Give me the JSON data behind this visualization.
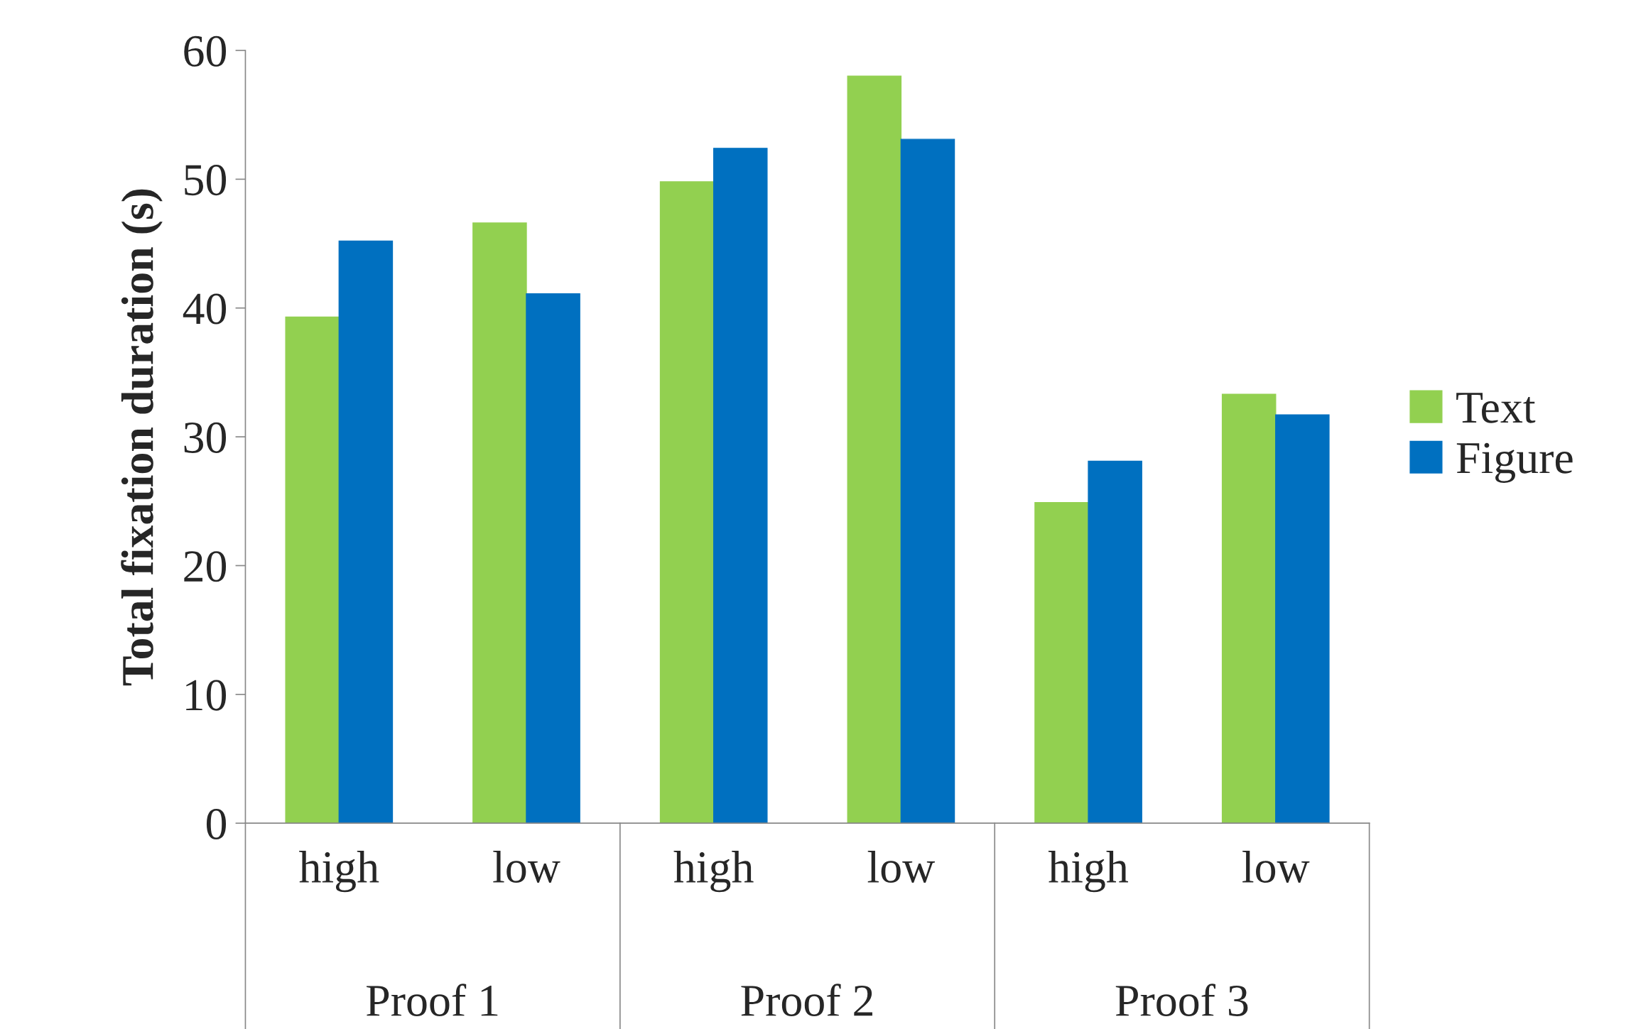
{
  "chart_data": {
    "type": "bar",
    "ylabel": "Total fixation duration (s)",
    "categories": [
      "high",
      "low",
      "high",
      "low",
      "high",
      "low"
    ],
    "series": [
      {
        "name": "Text",
        "color": "#92d050",
        "values": [
          39.3,
          46.6,
          49.8,
          58.0,
          24.9,
          33.3
        ]
      },
      {
        "name": "Figure",
        "color": "#0070c0",
        "values": [
          45.2,
          41.1,
          52.4,
          53.1,
          28.1,
          31.7
        ]
      }
    ],
    "annotations": [
      "Proof 1",
      "Proof 2",
      "Proof 3"
    ],
    "ylim": [
      0,
      60
    ],
    "yticks": [
      0,
      10,
      20,
      30,
      40,
      50,
      60
    ],
    "grid": false,
    "legend": "right"
  }
}
